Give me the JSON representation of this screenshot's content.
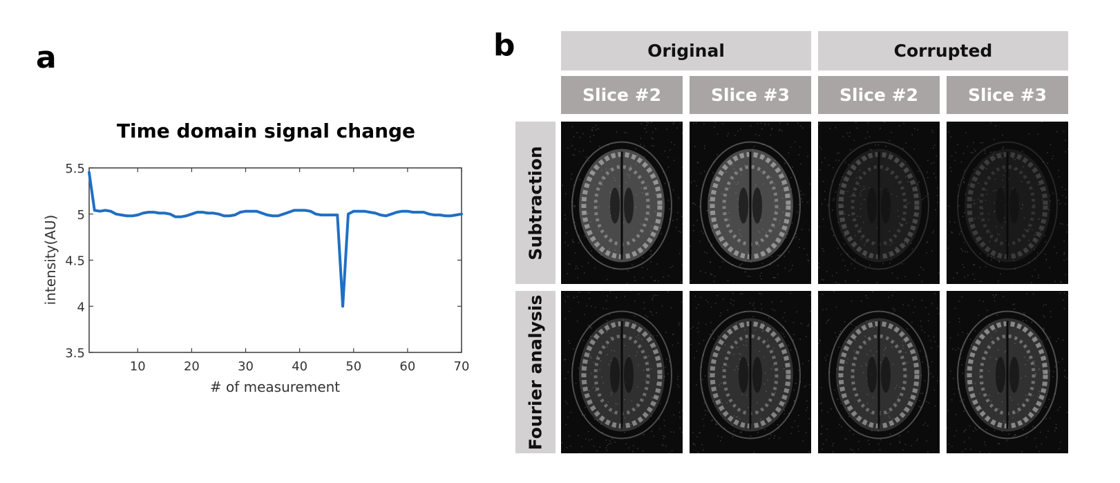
{
  "panel_a_label": "a",
  "panel_b_label": "b",
  "chart_data": {
    "type": "line",
    "title": "Time domain signal change",
    "xlabel": "# of measurement",
    "ylabel": "intensity(AU)",
    "xlim": [
      1,
      70
    ],
    "ylim": [
      3.5,
      5.5
    ],
    "xticks": [
      10,
      20,
      30,
      40,
      50,
      60,
      70
    ],
    "yticks": [
      3.5,
      4,
      4.5,
      5,
      5.5
    ],
    "xtick_labels": [
      "10",
      "20",
      "30",
      "40",
      "50",
      "60",
      "70"
    ],
    "ytick_labels": [
      "3.5",
      "4",
      "4.5",
      "5",
      "5.5"
    ],
    "grid": false,
    "color": "#1f6fc4",
    "series": [
      {
        "x": [
          1,
          2,
          3,
          4,
          5,
          6,
          7,
          8,
          9,
          10,
          11,
          12,
          13,
          14,
          15,
          16,
          17,
          18,
          19,
          20,
          21,
          22,
          23,
          24,
          25,
          26,
          27,
          28,
          29,
          30,
          31,
          32,
          33,
          34,
          35,
          36,
          37,
          38,
          39,
          40,
          41,
          42,
          43,
          44,
          45,
          46,
          47,
          48,
          49,
          50,
          51,
          52,
          53,
          54,
          55,
          56,
          57,
          58,
          59,
          60,
          61,
          62,
          63,
          64,
          65,
          66,
          67,
          68,
          69,
          70
        ],
        "y": [
          5.45,
          5.04,
          5.03,
          5.04,
          5.03,
          5.0,
          4.99,
          4.98,
          4.98,
          4.99,
          5.01,
          5.02,
          5.02,
          5.01,
          5.01,
          5.0,
          4.97,
          4.97,
          4.98,
          5.0,
          5.02,
          5.02,
          5.01,
          5.01,
          5.0,
          4.98,
          4.98,
          4.99,
          5.02,
          5.03,
          5.03,
          5.03,
          5.01,
          4.99,
          4.98,
          4.98,
          5.0,
          5.02,
          5.04,
          5.04,
          5.04,
          5.03,
          5.0,
          4.99,
          4.99,
          4.99,
          4.99,
          4.0,
          5.0,
          5.03,
          5.03,
          5.03,
          5.02,
          5.01,
          4.99,
          4.98,
          5.0,
          5.02,
          5.03,
          5.03,
          5.02,
          5.02,
          5.02,
          5.0,
          4.99,
          4.99,
          4.98,
          4.98,
          4.99,
          5.0
        ]
      }
    ]
  },
  "grid_panel": {
    "column_groups": [
      "Original",
      "Corrupted"
    ],
    "columns": [
      "Slice #2",
      "Slice #3",
      "Slice #2",
      "Slice #3"
    ],
    "rows": [
      "Subtraction",
      "Fourier analysis"
    ],
    "images": [
      {
        "row": "Subtraction",
        "group": "Original",
        "slice": "Slice #2",
        "tone": "#cfcfcf"
      },
      {
        "row": "Subtraction",
        "group": "Original",
        "slice": "Slice #3",
        "tone": "#cfcfcf"
      },
      {
        "row": "Subtraction",
        "group": "Corrupted",
        "slice": "Slice #2",
        "tone": "#6a6a6a"
      },
      {
        "row": "Subtraction",
        "group": "Corrupted",
        "slice": "Slice #3",
        "tone": "#5a5a5a"
      },
      {
        "row": "Fourier analysis",
        "group": "Original",
        "slice": "Slice #2",
        "tone": "#c8c8c8"
      },
      {
        "row": "Fourier analysis",
        "group": "Original",
        "slice": "Slice #3",
        "tone": "#c8c8c8"
      },
      {
        "row": "Fourier analysis",
        "group": "Corrupted",
        "slice": "Slice #2",
        "tone": "#c8c8c8"
      },
      {
        "row": "Fourier analysis",
        "group": "Corrupted",
        "slice": "Slice #3",
        "tone": "#cfcfcf"
      }
    ]
  }
}
